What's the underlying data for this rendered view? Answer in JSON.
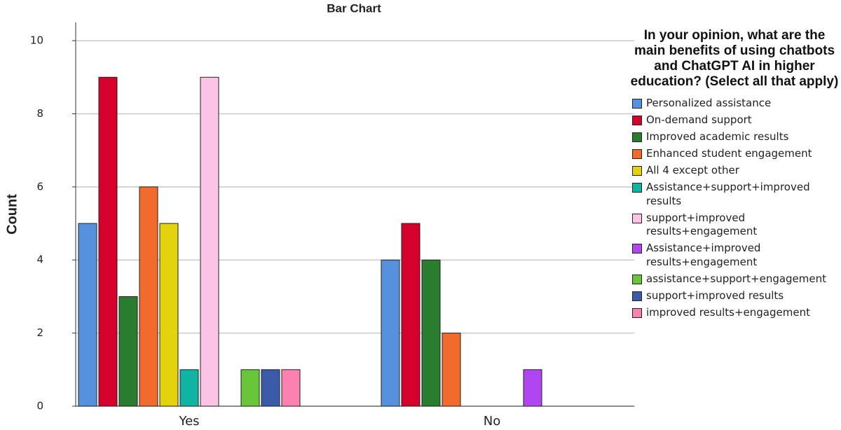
{
  "chart_data": {
    "type": "bar",
    "title": "Bar Chart",
    "y_label": "Count",
    "legend_title": "In your opinion, what are the main benefits of using chatbots and ChatGPT AI in higher education? (Select all that apply)",
    "legend_position": "right",
    "categories": [
      "Yes",
      "No"
    ],
    "ylim": [
      0,
      10.5
    ],
    "yticks": [
      0,
      2,
      4,
      6,
      8,
      10
    ],
    "grid": true,
    "series": [
      {
        "name": "Personalized assistance",
        "color": "#5591dc",
        "values": [
          5,
          4
        ]
      },
      {
        "name": "On-demand support",
        "color": "#d6002c",
        "values": [
          9,
          5
        ]
      },
      {
        "name": "Improved academic results",
        "color": "#2a7d2f",
        "values": [
          3,
          4
        ]
      },
      {
        "name": "Enhanced student engagement",
        "color": "#f26b2d",
        "values": [
          6,
          2
        ]
      },
      {
        "name": "All 4 except other",
        "color": "#e3d30d",
        "values": [
          5,
          null
        ]
      },
      {
        "name": "Assistance+support+improved results",
        "color": "#11b3a3",
        "values": [
          1,
          null
        ]
      },
      {
        "name": "support+improved results+engagement",
        "color": "#fcc4e4",
        "values": [
          9,
          null
        ]
      },
      {
        "name": "Assistance+improved results+engagement",
        "color": "#b046f0",
        "values": [
          null,
          1
        ]
      },
      {
        "name": "assistance+support+engagement",
        "color": "#69c53a",
        "values": [
          1,
          null
        ]
      },
      {
        "name": "support+improved results",
        "color": "#3b5aa8",
        "values": [
          1,
          null
        ]
      },
      {
        "name": "improved results+engagement",
        "color": "#fb82b0",
        "values": [
          1,
          null
        ]
      }
    ]
  }
}
